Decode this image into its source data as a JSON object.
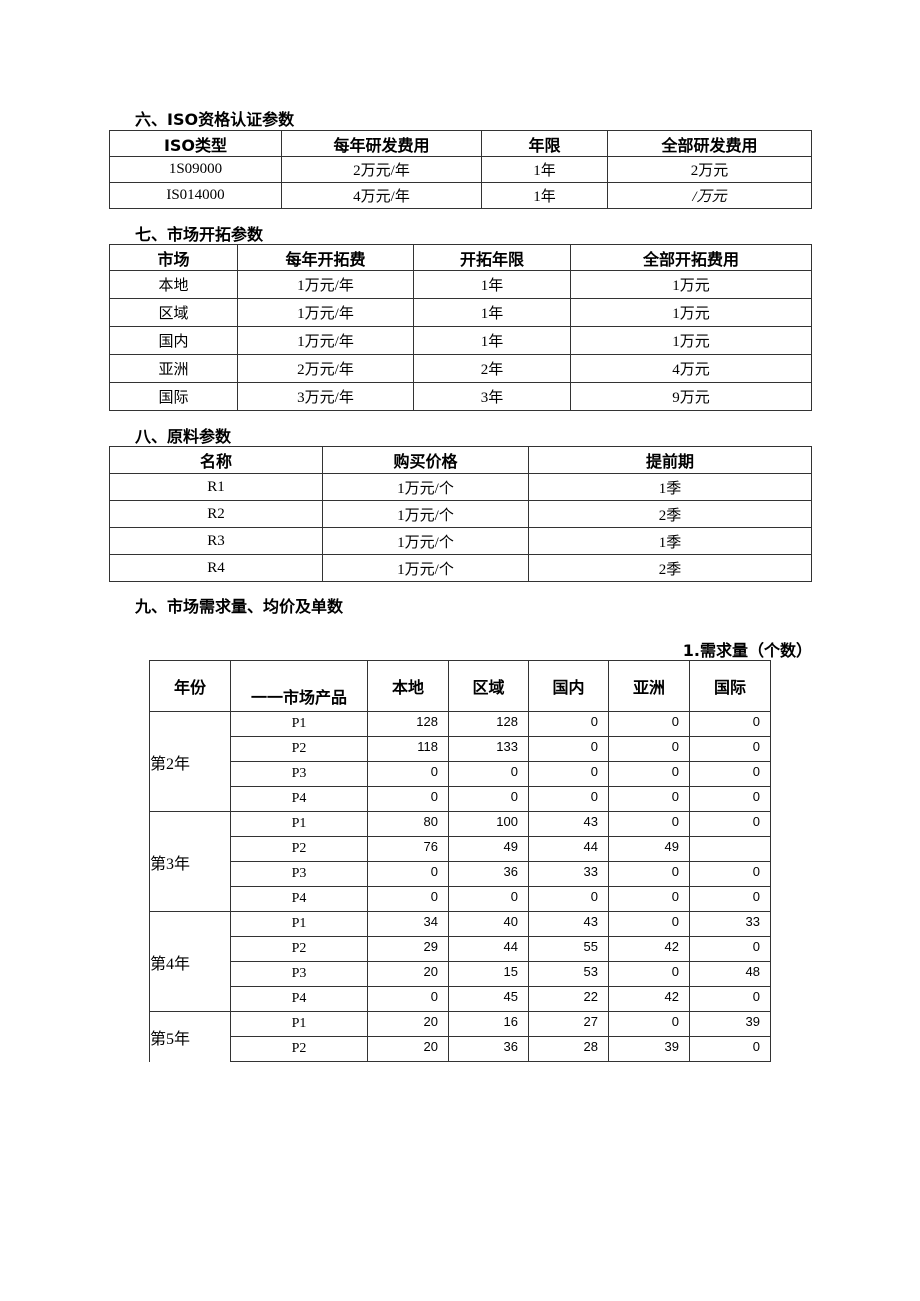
{
  "iso": {
    "heading": "六、ISO资格认证参数",
    "headers": [
      "ISO类型",
      "每年研发费用",
      "年限",
      "全部研发费用"
    ],
    "rows": [
      [
        "1S09000",
        "2万元/年",
        "1年",
        "2万元"
      ],
      [
        "IS014000",
        "4万元/年",
        "1年",
        "/万元"
      ]
    ]
  },
  "market": {
    "heading": "七、市场开拓参数",
    "headers": [
      "市场",
      "每年开拓费",
      "开拓年限",
      "全部开拓费用"
    ],
    "rows": [
      [
        "本地",
        "1万元/年",
        "1年",
        "1万元"
      ],
      [
        "区域",
        "1万元/年",
        "1年",
        "1万元"
      ],
      [
        "国内",
        "1万元/年",
        "1年",
        "1万元"
      ],
      [
        "亚洲",
        "2万元/年",
        "2年",
        "4万元"
      ],
      [
        "国际",
        "3万元/年",
        "3年",
        "9万元"
      ]
    ]
  },
  "material": {
    "heading": "八、原料参数",
    "headers": [
      "名称",
      "购买价格",
      "提前期"
    ],
    "rows": [
      [
        "R1",
        "1万元/个",
        "1季"
      ],
      [
        "R2",
        "1万元/个",
        "2季"
      ],
      [
        "R3",
        "1万元/个",
        "1季"
      ],
      [
        "R4",
        "1万元/个",
        "2季"
      ]
    ]
  },
  "demand": {
    "heading": "九、市场需求量、均价及单数",
    "subtitle": "1.需求量（个数）",
    "headers": [
      "年份",
      "一一市场产品",
      "本地",
      "区域",
      "国内",
      "亚洲",
      "国际"
    ],
    "years": [
      {
        "label": "第2年",
        "rows": [
          [
            "P1",
            "128",
            "128",
            "0",
            "0",
            "0"
          ],
          [
            "P2",
            "118",
            "133",
            "0",
            "0",
            "0"
          ],
          [
            "P3",
            "0",
            "0",
            "0",
            "0",
            "0"
          ],
          [
            "P4",
            "0",
            "0",
            "0",
            "0",
            "0"
          ]
        ]
      },
      {
        "label": "第3年",
        "rows": [
          [
            "P1",
            "80",
            "100",
            "43",
            "0",
            "0"
          ],
          [
            "P2",
            "76",
            "49",
            "44",
            "49",
            ""
          ],
          [
            "P3",
            "0",
            "36",
            "33",
            "0",
            "0"
          ],
          [
            "P4",
            "0",
            "0",
            "0",
            "0",
            "0"
          ]
        ]
      },
      {
        "label": "第4年",
        "rows": [
          [
            "P1",
            "34",
            "40",
            "43",
            "0",
            "33"
          ],
          [
            "P2",
            "29",
            "44",
            "55",
            "42",
            "0"
          ],
          [
            "P3",
            "20",
            "15",
            "53",
            "0",
            "48"
          ],
          [
            "P4",
            "0",
            "45",
            "22",
            "42",
            "0"
          ]
        ]
      },
      {
        "label": "第5年",
        "rows": [
          [
            "P1",
            "20",
            "16",
            "27",
            "0",
            "39"
          ],
          [
            "P2",
            "20",
            "36",
            "28",
            "39",
            "0"
          ]
        ]
      }
    ]
  }
}
